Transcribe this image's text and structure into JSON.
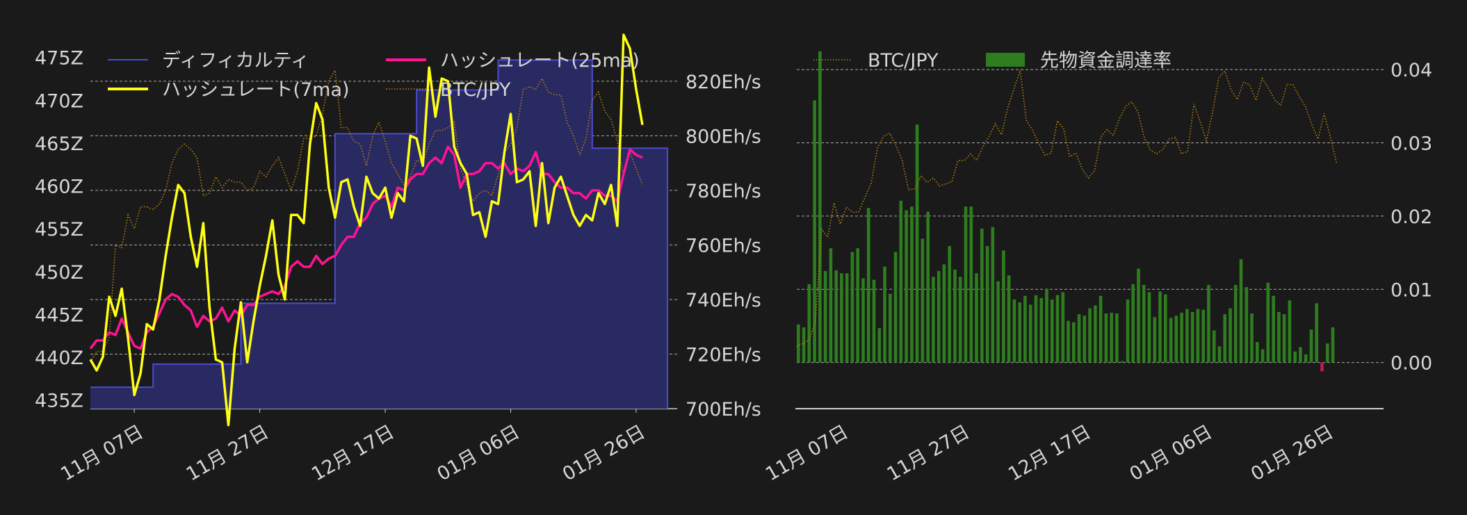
{
  "colors": {
    "background": "#1a1a1a",
    "difficulty_line": "#4b4bd2",
    "difficulty_fill": "#2a2a63",
    "hashrate_7ma": "#ffff14",
    "hashrate_25ma": "#ff1493",
    "btc_jpy": "#b8860b",
    "funding_pos": "#2e7d1e",
    "funding_neg": "#c2185b",
    "grid": "#d0d0d0",
    "text": "#d6d6d6"
  },
  "chart_data": [
    {
      "type": "line",
      "title": "",
      "x_start": "2023-10-31",
      "x_end": "2024-02-05",
      "x_ticks": [
        "11月 07日",
        "11月 27日",
        "12月 17日",
        "01月 06日",
        "01月 26日"
      ],
      "y_left": {
        "label": "",
        "range": [
          434,
          477
        ],
        "ticks": [
          "435Z",
          "440Z",
          "445Z",
          "450Z",
          "455Z",
          "460Z",
          "465Z",
          "470Z",
          "475Z"
        ]
      },
      "y_right": {
        "label": "",
        "range": [
          700,
          835
        ],
        "ticks": [
          "700Eh/s",
          "720Eh/s",
          "740Eh/s",
          "760Eh/s",
          "780Eh/s",
          "800Eh/s",
          "820Eh/s"
        ]
      },
      "legend": {
        "position": "top",
        "entries": [
          "ディフィカルティ",
          "ハッシュレート(7ma)",
          "ハッシュレート(25ma)",
          "BTC/JPY"
        ]
      },
      "grid": "horizontal dashed",
      "series": [
        {
          "name": "ディフィカルティ",
          "axis": "left",
          "steps": [
            {
              "from": "2023-10-31",
              "to": "2023-11-10",
              "value": 436.5
            },
            {
              "from": "2023-11-10",
              "to": "2023-11-24",
              "value": 439.2
            },
            {
              "from": "2023-11-24",
              "to": "2023-12-09",
              "value": 446.3
            },
            {
              "from": "2023-12-09",
              "to": "2023-12-22",
              "value": 466.1
            },
            {
              "from": "2023-12-22",
              "to": "2024-01-04",
              "value": 471.2
            },
            {
              "from": "2024-01-04",
              "to": "2024-01-19",
              "value": 474.7
            },
            {
              "from": "2024-01-19",
              "to": "2024-01-31",
              "value": 464.4
            }
          ]
        },
        {
          "name": "ハッシュレート(7ma)",
          "axis": "right",
          "values": [
            718,
            714,
            719,
            741,
            734,
            744,
            726,
            705,
            713,
            731,
            729,
            740,
            756,
            770,
            782,
            779,
            763,
            752,
            768,
            737,
            718,
            717,
            694,
            722,
            739,
            717,
            732,
            745,
            756,
            769,
            749,
            740,
            771,
            771,
            768,
            797,
            812,
            806,
            781,
            770,
            783,
            784,
            774,
            767,
            785,
            779,
            777,
            781,
            770,
            779,
            776,
            800,
            799,
            789,
            825,
            807,
            821,
            820,
            796,
            790,
            786,
            771,
            772,
            763,
            776,
            775,
            794,
            808,
            783,
            784,
            787,
            767,
            790,
            768,
            781,
            785,
            778,
            771,
            767,
            771,
            769,
            779,
            775,
            782,
            767,
            837,
            832,
            817,
            804
          ]
        },
        {
          "name": "ハッシュレート(25ma)",
          "axis": "right",
          "values": [
            722,
            725,
            725,
            728,
            727,
            733,
            728,
            723,
            722,
            728,
            730,
            735,
            740,
            742,
            741,
            738,
            736,
            730,
            734,
            732,
            733,
            737,
            732,
            736,
            734,
            738,
            738,
            741,
            742,
            743,
            742,
            745,
            752,
            754,
            752,
            752,
            756,
            753,
            755,
            756,
            760,
            763,
            763,
            768,
            770,
            775,
            777,
            778,
            774,
            781,
            780,
            784,
            786,
            786,
            790,
            792,
            790,
            796,
            793,
            781,
            786,
            786,
            787,
            790,
            790,
            788,
            790,
            786,
            788,
            787,
            789,
            794,
            786,
            786,
            783,
            781,
            781,
            779,
            779,
            777,
            780,
            780,
            778,
            778,
            776,
            786,
            795,
            793,
            792
          ]
        },
        {
          "name": "BTC/JPY",
          "axis": "right",
          "values": [
            717,
            721,
            721,
            726,
            760,
            759,
            771,
            766,
            774,
            774,
            773,
            775,
            780,
            790,
            795,
            797,
            795,
            792,
            778,
            779,
            785,
            781,
            784,
            783,
            783,
            780,
            781,
            787,
            785,
            789,
            792,
            786,
            780,
            787,
            799,
            799,
            800,
            808,
            820,
            824,
            803,
            803,
            798,
            797,
            789,
            800,
            805,
            798,
            790,
            786,
            782,
            785,
            791,
            790,
            797,
            802,
            802,
            803,
            805,
            788,
            782,
            776,
            779,
            780,
            778,
            786,
            794,
            797,
            803,
            817,
            818,
            817,
            821,
            816,
            815,
            815,
            805,
            800,
            793,
            799,
            813,
            816,
            809,
            806,
            798,
            785,
            794,
            788,
            782
          ]
        }
      ]
    },
    {
      "type": "bar",
      "title": "",
      "x_start": "2023-10-31",
      "x_end": "2024-02-05",
      "x_ticks": [
        "11月 07日",
        "11月 27日",
        "12月 17日",
        "01月 06日",
        "01月 26日"
      ],
      "y_right": {
        "label": "",
        "range": [
          -0.0063,
          0.044
        ],
        "ticks": [
          "0.00",
          "0.01",
          "0.02",
          "0.03",
          "0.04"
        ]
      },
      "legend": {
        "position": "top-left",
        "entries": [
          "BTC/JPY",
          "先物資金調達率"
        ]
      },
      "grid": "horizontal dashed",
      "series": [
        {
          "name": "先物資金調達率",
          "type": "bar",
          "values": [
            0.0052,
            0.0048,
            0.0107,
            0.0358,
            0.0425,
            0.0125,
            0.0156,
            0.0126,
            0.0122,
            0.0122,
            0.0151,
            0.0156,
            0.0115,
            0.0211,
            0.0113,
            0.0047,
            0.0131,
            0.0094,
            0.0151,
            0.0221,
            0.0208,
            0.0213,
            0.0325,
            0.0169,
            0.0206,
            0.0117,
            0.0125,
            0.0134,
            0.0159,
            0.0127,
            0.0117,
            0.0213,
            0.0213,
            0.0122,
            0.0183,
            0.0159,
            0.0185,
            0.0111,
            0.0153,
            0.0119,
            0.0086,
            0.0082,
            0.0091,
            0.0079,
            0.0092,
            0.0088,
            0.0101,
            0.0086,
            0.0092,
            0.0096,
            0.0057,
            0.0055,
            0.0066,
            0.0064,
            0.0074,
            0.0078,
            0.0091,
            0.0067,
            0.0068,
            0.0067,
            0.0002,
            0.0086,
            0.0107,
            0.0128,
            0.0106,
            0.0096,
            0.0062,
            0.0097,
            0.0093,
            0.0061,
            0.0064,
            0.0068,
            0.0073,
            0.0069,
            0.0073,
            0.0072,
            0.0106,
            0.0044,
            0.0022,
            0.0066,
            0.0074,
            0.0106,
            0.0141,
            0.0103,
            0.0067,
            0.0028,
            0.0018,
            0.0109,
            0.0091,
            0.0069,
            0.0066,
            0.0085,
            0.0015,
            0.0021,
            0.0011,
            0.0045,
            0.0081,
            -0.0012,
            0.0026,
            0.0048
          ]
        },
        {
          "name": "BTC/JPY",
          "type": "line",
          "style": "dotted",
          "values": [
            0.0022,
            0.0026,
            0.0031,
            0.0056,
            0.0182,
            0.0171,
            0.0218,
            0.0189,
            0.0212,
            0.0205,
            0.0206,
            0.0226,
            0.0245,
            0.0293,
            0.0309,
            0.0313,
            0.0296,
            0.0276,
            0.0236,
            0.0237,
            0.0255,
            0.0246,
            0.0252,
            0.0241,
            0.0244,
            0.0247,
            0.0276,
            0.0276,
            0.0285,
            0.0276,
            0.0295,
            0.0309,
            0.0326,
            0.0311,
            0.0348,
            0.0374,
            0.0399,
            0.0331,
            0.0317,
            0.0299,
            0.0283,
            0.0286,
            0.033,
            0.0319,
            0.0281,
            0.0286,
            0.0264,
            0.0252,
            0.0262,
            0.0308,
            0.0318,
            0.031,
            0.0333,
            0.035,
            0.0356,
            0.0342,
            0.0307,
            0.029,
            0.0285,
            0.0291,
            0.0305,
            0.0307,
            0.0285,
            0.0288,
            0.0353,
            0.0329,
            0.0303,
            0.0341,
            0.0389,
            0.0398,
            0.0372,
            0.0359,
            0.0383,
            0.0379,
            0.0358,
            0.0388,
            0.0375,
            0.0359,
            0.0351,
            0.038,
            0.0379,
            0.0363,
            0.0349,
            0.0325,
            0.0305,
            0.034,
            0.0307,
            0.0272
          ]
        }
      ]
    }
  ]
}
